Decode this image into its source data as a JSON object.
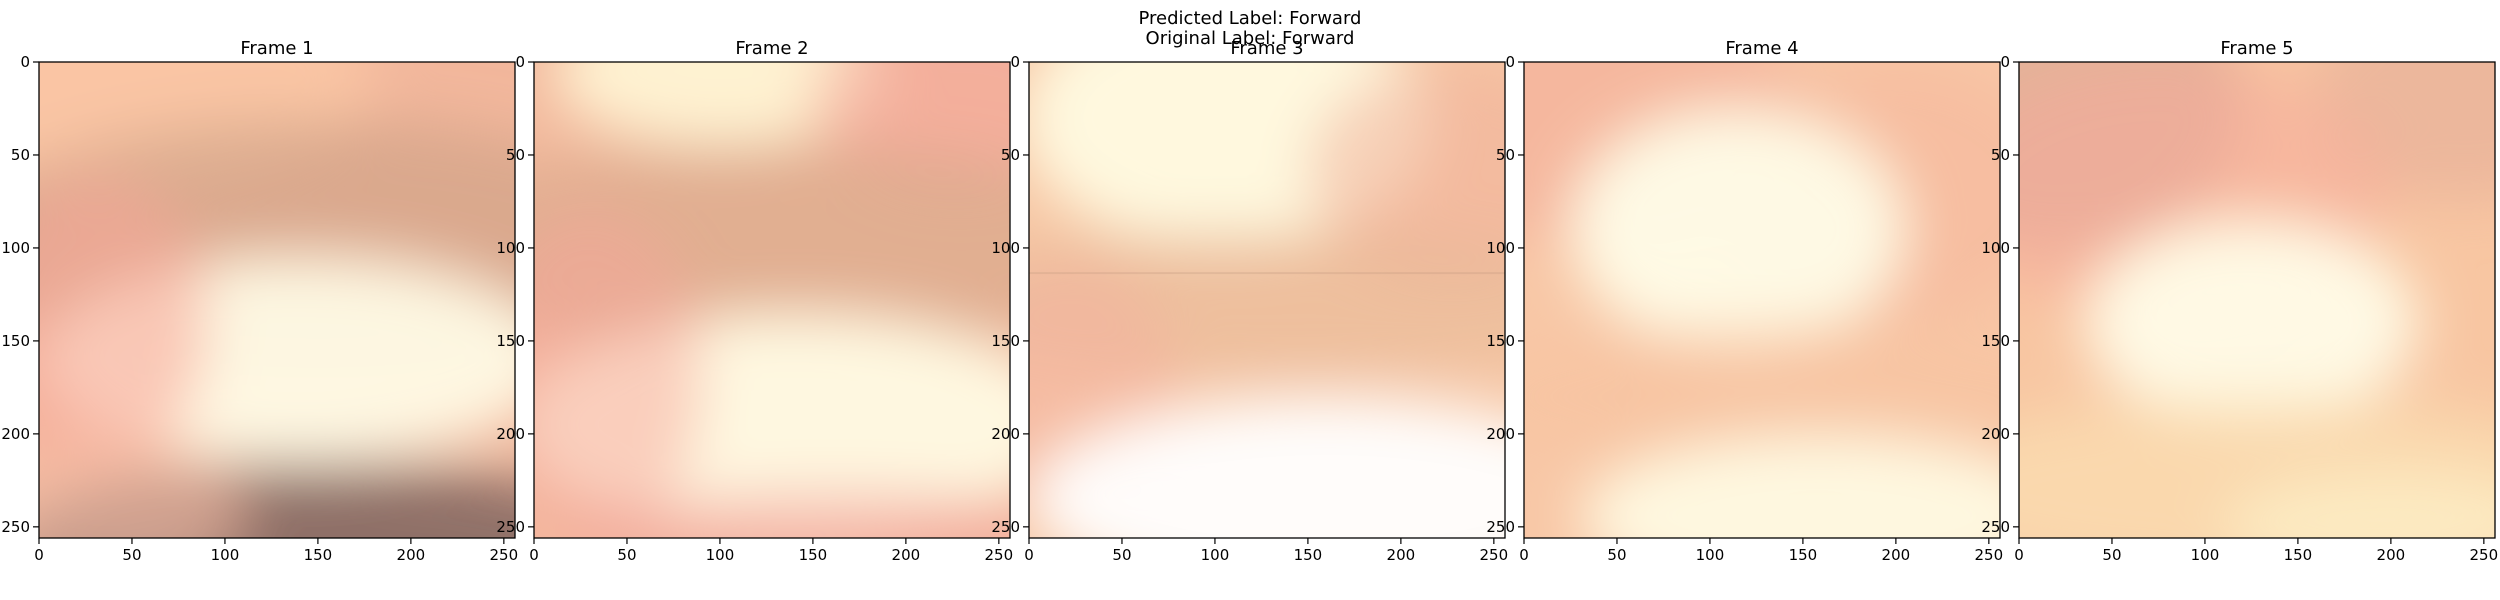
{
  "figure": {
    "suptitle_lines": [
      "Predicted Label: Forward",
      "Original Label: Forward"
    ]
  },
  "axes_common": {
    "xlim": [
      0,
      256
    ],
    "ylim": [
      256,
      0
    ],
    "x_ticks": [
      0,
      50,
      100,
      150,
      200,
      250
    ],
    "y_ticks": [
      0,
      50,
      100,
      150,
      200,
      250
    ]
  },
  "frames": [
    {
      "title": "Frame 1",
      "base": "#f2b79c",
      "blobs": [
        {
          "cx": 40,
          "cy": 8,
          "rx": 140,
          "ry": 60,
          "color": "#fcc9a6",
          "a": 0.8
        },
        {
          "cx": 150,
          "cy": 100,
          "rx": 200,
          "ry": 70,
          "color": "#c79d82",
          "a": 0.55
        },
        {
          "cx": 140,
          "cy": 160,
          "rx": 140,
          "ry": 55,
          "color": "#fffbe6",
          "a": 0.95
        },
        {
          "cx": 30,
          "cy": 140,
          "rx": 60,
          "ry": 80,
          "color": "#f6a99a",
          "a": 0.6
        },
        {
          "cx": 150,
          "cy": 260,
          "rx": 170,
          "ry": 45,
          "color": "#6f5a57",
          "a": 0.75
        },
        {
          "cx": 40,
          "cy": 240,
          "rx": 70,
          "ry": 40,
          "color": "#f8c2a8",
          "a": 0.6
        }
      ]
    },
    {
      "title": "Frame 2",
      "base": "#f3ba9e",
      "blobs": [
        {
          "cx": 100,
          "cy": 5,
          "rx": 90,
          "ry": 40,
          "color": "#fff4d4",
          "a": 0.95
        },
        {
          "cx": 230,
          "cy": 20,
          "rx": 80,
          "ry": 50,
          "color": "#f3a69a",
          "a": 0.6
        },
        {
          "cx": 130,
          "cy": 100,
          "rx": 220,
          "ry": 55,
          "color": "#d6a689",
          "a": 0.6
        },
        {
          "cx": 140,
          "cy": 195,
          "rx": 150,
          "ry": 60,
          "color": "#fffbe4",
          "a": 0.95
        },
        {
          "cx": 30,
          "cy": 170,
          "rx": 60,
          "ry": 90,
          "color": "#f6a599",
          "a": 0.5
        },
        {
          "cx": 160,
          "cy": 255,
          "rx": 140,
          "ry": 25,
          "color": "#f2a29b",
          "a": 0.55
        }
      ]
    },
    {
      "title": "Frame 3",
      "base": "#f7c7a5",
      "split_y": 113,
      "blobs": [
        {
          "cx": 105,
          "cy": 30,
          "rx": 110,
          "ry": 70,
          "color": "#fffbe2",
          "a": 0.95
        },
        {
          "cx": 230,
          "cy": 60,
          "rx": 80,
          "ry": 60,
          "color": "#f1b199",
          "a": 0.55
        },
        {
          "cx": 130,
          "cy": 130,
          "rx": 200,
          "ry": 40,
          "color": "#e6b896",
          "a": 0.5
        },
        {
          "cx": 20,
          "cy": 180,
          "rx": 60,
          "ry": 70,
          "color": "#f5b0a0",
          "a": 0.45
        },
        {
          "cx": 160,
          "cy": 235,
          "rx": 160,
          "ry": 55,
          "color": "#ffffff",
          "a": 0.95
        }
      ]
    },
    {
      "title": "Frame 4",
      "base": "#f8c7a6",
      "blobs": [
        {
          "cx": 40,
          "cy": 30,
          "rx": 110,
          "ry": 70,
          "color": "#f4ad99",
          "a": 0.6
        },
        {
          "cx": 200,
          "cy": 70,
          "rx": 90,
          "ry": 70,
          "color": "#f6b69c",
          "a": 0.5
        },
        {
          "cx": 115,
          "cy": 90,
          "rx": 90,
          "ry": 65,
          "color": "#fffde8",
          "a": 0.95
        },
        {
          "cx": 150,
          "cy": 180,
          "rx": 180,
          "ry": 40,
          "color": "#f7c39f",
          "a": 0.5
        },
        {
          "cx": 160,
          "cy": 245,
          "rx": 130,
          "ry": 45,
          "color": "#fffde6",
          "a": 0.9
        }
      ]
    },
    {
      "title": "Frame 5",
      "base": "#f8c6a2",
      "blobs": [
        {
          "cx": 20,
          "cy": 20,
          "rx": 100,
          "ry": 80,
          "color": "#dca994",
          "a": 0.7
        },
        {
          "cx": 240,
          "cy": 15,
          "rx": 80,
          "ry": 60,
          "color": "#e4ad97",
          "a": 0.6
        },
        {
          "cx": 80,
          "cy": 70,
          "rx": 120,
          "ry": 70,
          "color": "#f5ac9a",
          "a": 0.55
        },
        {
          "cx": 125,
          "cy": 140,
          "rx": 90,
          "ry": 55,
          "color": "#fffce8",
          "a": 0.95
        },
        {
          "cx": 130,
          "cy": 230,
          "rx": 200,
          "ry": 50,
          "color": "#fbe0b2",
          "a": 0.7
        },
        {
          "cx": 200,
          "cy": 250,
          "rx": 90,
          "ry": 30,
          "color": "#fff6cf",
          "a": 0.6
        }
      ]
    }
  ]
}
